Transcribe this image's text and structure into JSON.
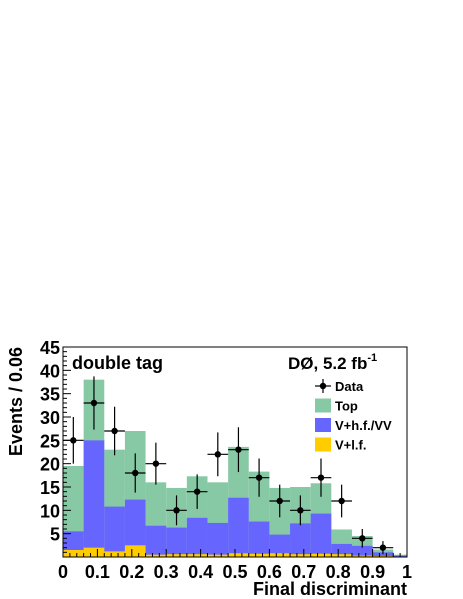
{
  "chart_data": {
    "type": "bar",
    "annotations": {
      "label_left": "double tag",
      "experiment": "DØ, 5.2 fb",
      "lumi_exponent": "-1"
    },
    "xlabel": "Final discriminant",
    "ylabel": "Events / 0.06",
    "xlim": [
      0,
      1
    ],
    "ylim": [
      0,
      45
    ],
    "x_tick_labels": [
      "0",
      "0.1",
      "0.2",
      "0.3",
      "0.4",
      "0.5",
      "0.6",
      "0.7",
      "0.8",
      "0.9",
      "1"
    ],
    "y_tick_labels": [
      "5",
      "10",
      "15",
      "20",
      "25",
      "30",
      "35",
      "40",
      "45"
    ],
    "bin_edges": [
      0,
      0.06,
      0.12,
      0.18,
      0.24,
      0.3,
      0.36,
      0.42,
      0.48,
      0.54,
      0.6,
      0.66,
      0.72,
      0.78,
      0.84,
      0.9,
      0.96,
      1.0
    ],
    "stack_series": [
      {
        "name": "V+l.f.",
        "color": "#ffcc00",
        "values": [
          1.5,
          2.0,
          1.2,
          2.5,
          0.5,
          0.6,
          0.6,
          0.5,
          0.8,
          0.7,
          0.8,
          0.6,
          0.7,
          0.6,
          0.3,
          0.2,
          0.1
        ]
      },
      {
        "name": "V+h.f./VV",
        "color": "#6666ff",
        "values": [
          5.5,
          25.0,
          10.8,
          12.3,
          6.7,
          6.3,
          8.4,
          7.3,
          12.7,
          7.6,
          4.8,
          7.2,
          9.3,
          2.8,
          2.4,
          1.0,
          0.3
        ]
      },
      {
        "name": "Top",
        "color": "#88c9a5",
        "values": [
          19.5,
          38.0,
          23.0,
          27.0,
          16.0,
          14.8,
          17.3,
          16.0,
          23.6,
          18.3,
          14.8,
          15.0,
          15.8,
          5.9,
          4.5,
          1.6,
          0.5
        ]
      }
    ],
    "data_series": {
      "name": "Data",
      "color": "#000000",
      "x": [
        0.03,
        0.09,
        0.15,
        0.21,
        0.27,
        0.33,
        0.39,
        0.45,
        0.51,
        0.57,
        0.63,
        0.69,
        0.75,
        0.81,
        0.87,
        0.93
      ],
      "y": [
        25,
        33,
        27,
        18,
        20,
        10,
        14,
        22,
        23,
        17,
        12,
        10,
        17,
        12,
        4,
        2
      ],
      "err": [
        5.0,
        5.7,
        5.2,
        4.2,
        4.5,
        3.2,
        3.7,
        4.7,
        4.8,
        4.1,
        3.5,
        3.2,
        4.1,
        3.5,
        2.0,
        1.4
      ]
    },
    "legend": {
      "placement": "top-right",
      "entries": [
        {
          "label": "Data",
          "kind": "marker",
          "color": "#000000"
        },
        {
          "label": "Top",
          "kind": "box",
          "color": "#88c9a5"
        },
        {
          "label": "V+h.f./VV",
          "kind": "box",
          "color": "#6666ff"
        },
        {
          "label": "V+l.f.",
          "kind": "box",
          "color": "#ffcc00"
        }
      ]
    },
    "grid": false
  }
}
